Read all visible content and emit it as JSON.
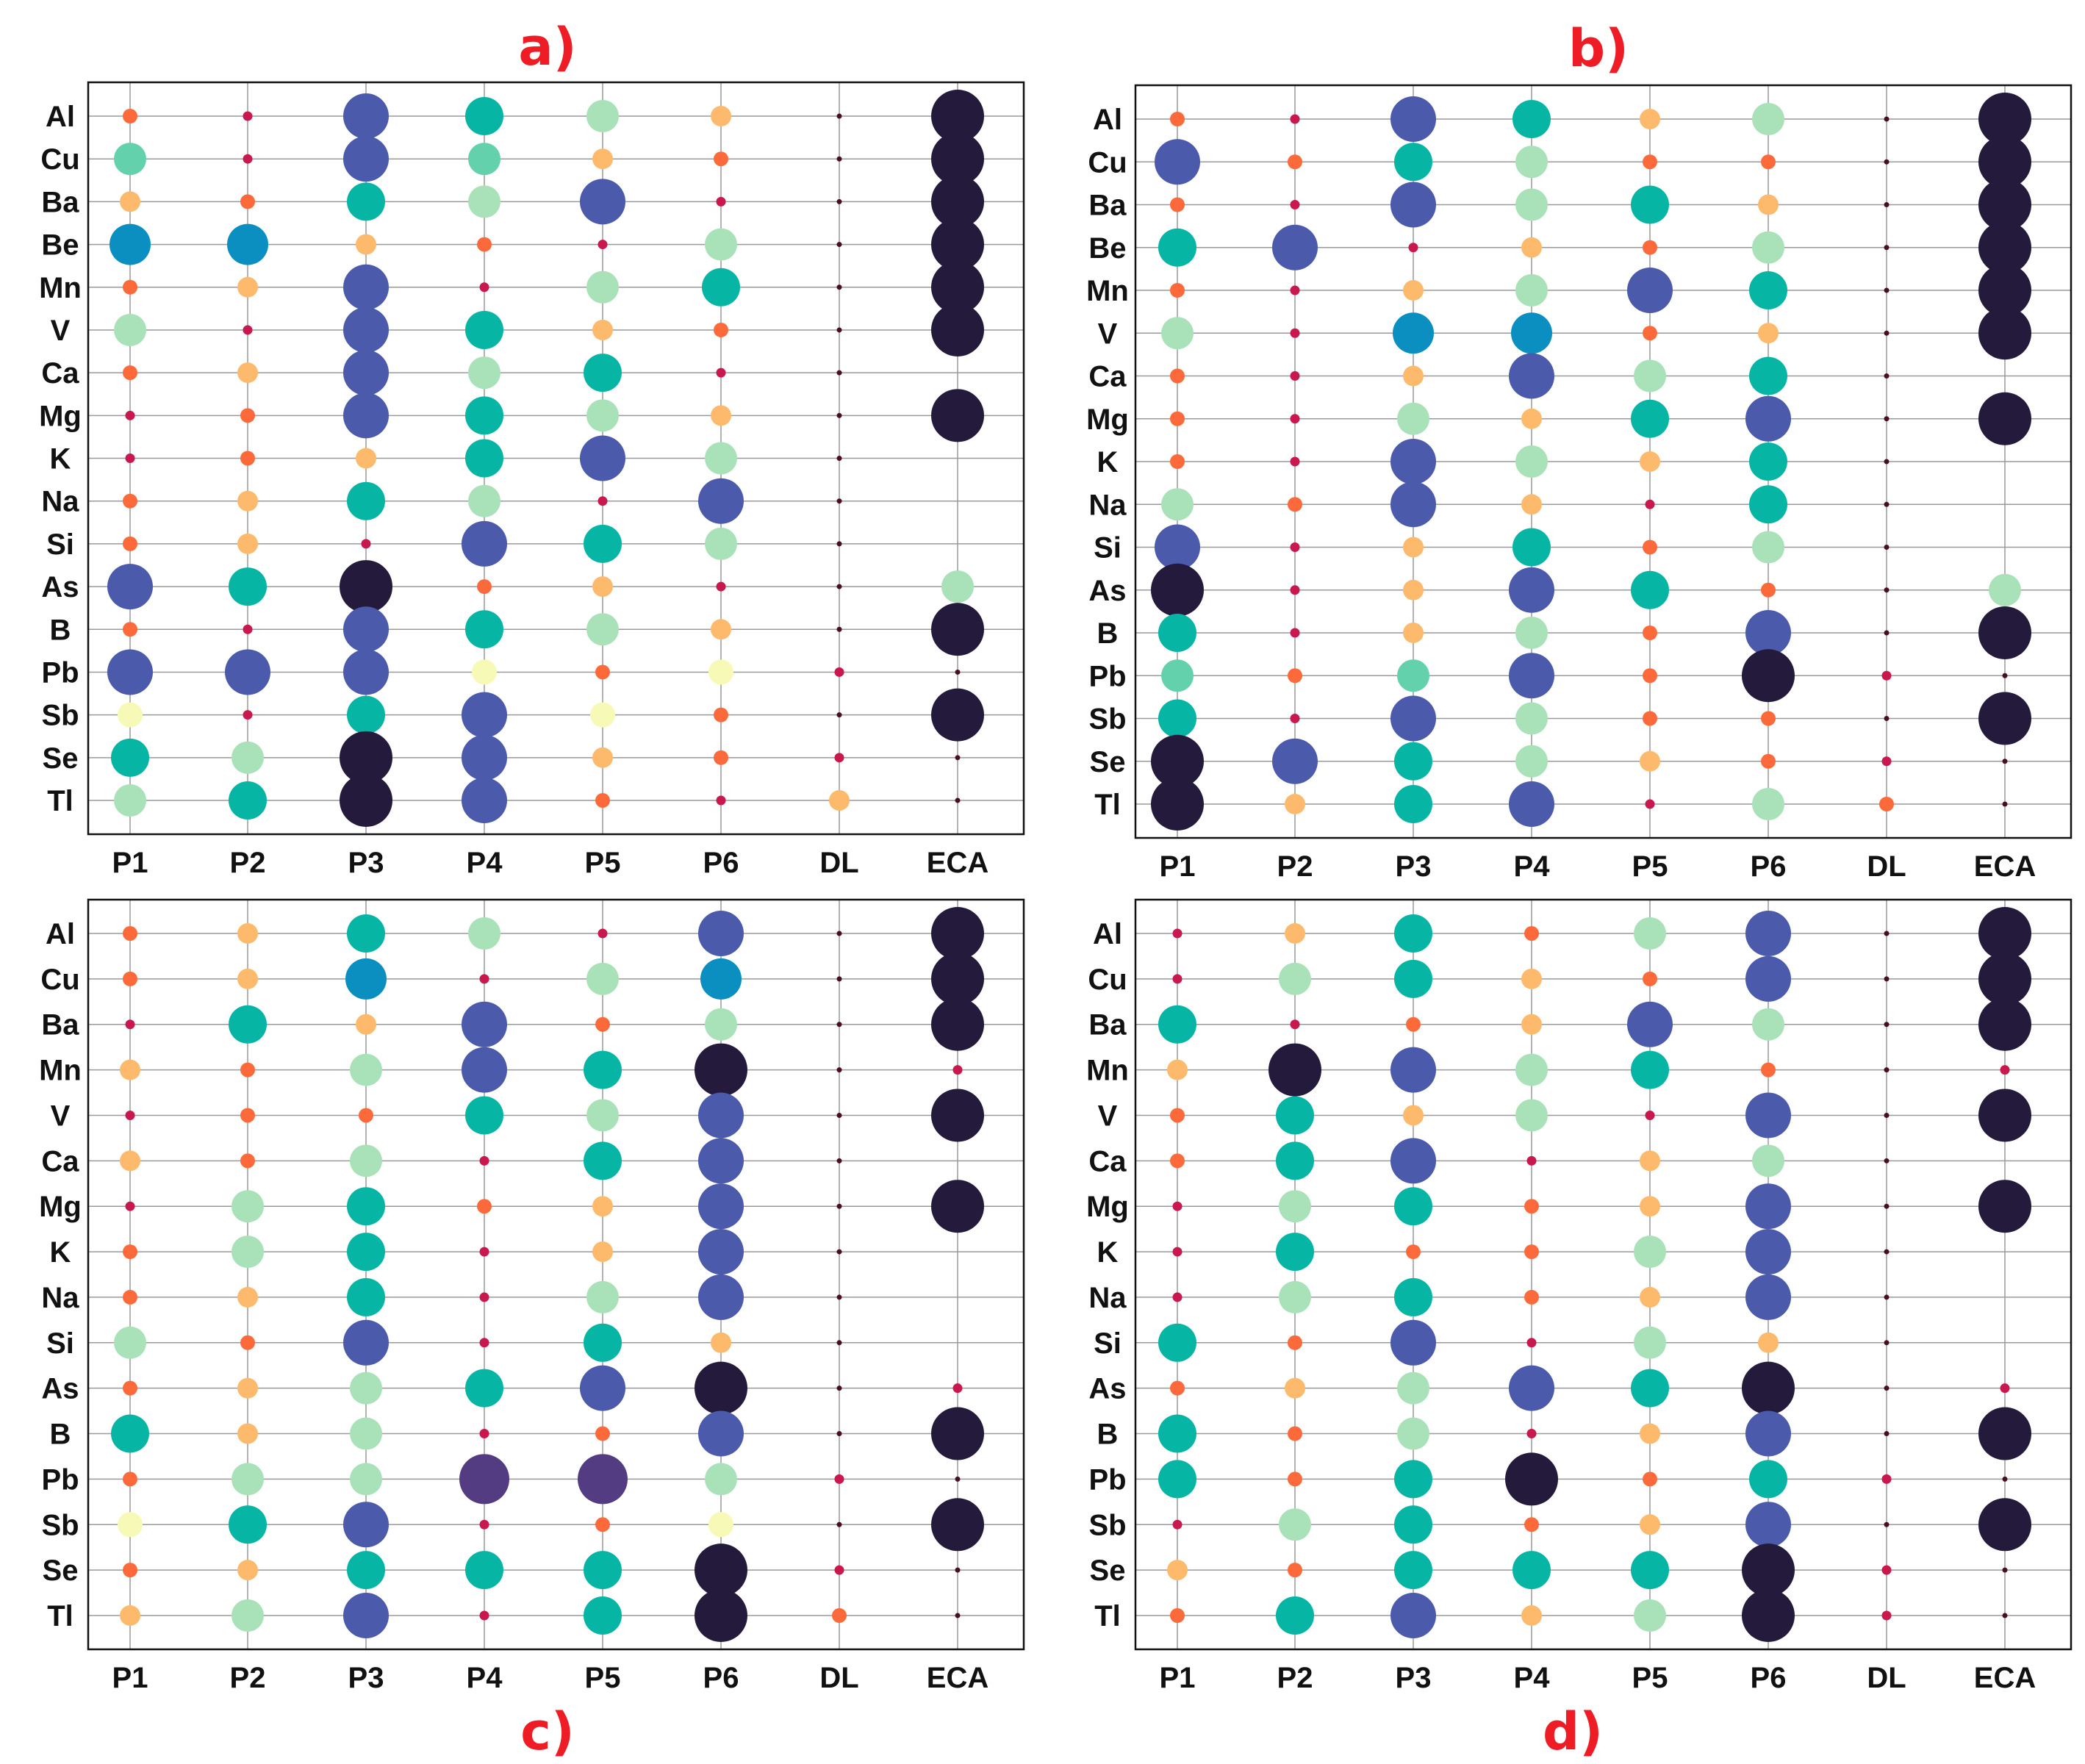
{
  "figure": {
    "type": "bubble-matrix",
    "title": "Element contribution bubble matrix (panels a–d)"
  },
  "colors": {
    "title": "#ee1c24",
    "frame": "#111111",
    "grid": "#9a9a9a",
    "levels": [
      "#c8184d",
      "#fc6a3c",
      "#fdba6c",
      "#f7f9b6",
      "#a9e1b8",
      "#62d1ac",
      "#07b5a5",
      "#0a8fc0",
      "#4b5aab",
      "#543c82",
      "#231a3c"
    ]
  },
  "chart_data": [
    {
      "title": "a)",
      "type": "bubble-matrix",
      "columns": [
        "P1",
        "P2",
        "P3",
        "P4",
        "P5",
        "P6",
        "DL",
        "ECA"
      ],
      "rows": [
        "Al",
        "Cu",
        "Ba",
        "Be",
        "Mn",
        "V",
        "Ca",
        "Mg",
        "K",
        "Na",
        "Si",
        "As",
        "B",
        "Pb",
        "Sb",
        "Se",
        "Tl"
      ],
      "size_levels": 11,
      "values": [
        [
          1,
          0,
          8,
          6,
          4,
          2,
          -1,
          10
        ],
        [
          5,
          0,
          8,
          5,
          2,
          1,
          -1,
          10
        ],
        [
          2,
          1,
          6,
          4,
          8,
          0,
          -1,
          10
        ],
        [
          7,
          7,
          2,
          1,
          0,
          4,
          -1,
          10
        ],
        [
          1,
          2,
          8,
          0,
          4,
          6,
          -1,
          10
        ],
        [
          4,
          0,
          8,
          6,
          2,
          1,
          -1,
          10
        ],
        [
          1,
          2,
          8,
          4,
          6,
          0,
          -1,
          -2
        ],
        [
          0,
          1,
          8,
          6,
          4,
          2,
          -1,
          10
        ],
        [
          0,
          1,
          2,
          6,
          8,
          4,
          -1,
          -2
        ],
        [
          1,
          2,
          6,
          4,
          0,
          8,
          -1,
          -2
        ],
        [
          1,
          2,
          0,
          8,
          6,
          4,
          -1,
          -2
        ],
        [
          8,
          6,
          10,
          1,
          2,
          0,
          -1,
          4
        ],
        [
          1,
          0,
          8,
          6,
          4,
          2,
          -1,
          10
        ],
        [
          8,
          8,
          8,
          3,
          1,
          3,
          0,
          -1
        ],
        [
          3,
          0,
          6,
          8,
          3,
          1,
          -1,
          10
        ],
        [
          6,
          4,
          10,
          8,
          2,
          1,
          0,
          -1
        ],
        [
          4,
          6,
          10,
          8,
          1,
          0,
          2,
          -1
        ]
      ]
    },
    {
      "title": "b)",
      "type": "bubble-matrix",
      "columns": [
        "P1",
        "P2",
        "P3",
        "P4",
        "P5",
        "P6",
        "DL",
        "ECA"
      ],
      "rows": [
        "Al",
        "Cu",
        "Ba",
        "Be",
        "Mn",
        "V",
        "Ca",
        "Mg",
        "K",
        "Na",
        "Si",
        "As",
        "B",
        "Pb",
        "Sb",
        "Se",
        "Tl"
      ],
      "size_levels": 11,
      "values": [
        [
          1,
          0,
          8,
          6,
          2,
          4,
          -1,
          10
        ],
        [
          8,
          1,
          6,
          4,
          1,
          1,
          -1,
          10
        ],
        [
          1,
          0,
          8,
          4,
          6,
          2,
          -1,
          10
        ],
        [
          6,
          8,
          0,
          2,
          1,
          4,
          -1,
          10
        ],
        [
          1,
          0,
          2,
          4,
          8,
          6,
          -1,
          10
        ],
        [
          4,
          0,
          7,
          7,
          1,
          2,
          -1,
          10
        ],
        [
          1,
          0,
          2,
          8,
          4,
          6,
          -1,
          -2
        ],
        [
          1,
          0,
          4,
          2,
          6,
          8,
          -1,
          10
        ],
        [
          1,
          0,
          8,
          4,
          2,
          6,
          -1,
          -2
        ],
        [
          4,
          1,
          8,
          2,
          0,
          6,
          -1,
          -2
        ],
        [
          8,
          0,
          2,
          6,
          1,
          4,
          -1,
          -2
        ],
        [
          10,
          0,
          2,
          8,
          6,
          1,
          -1,
          4
        ],
        [
          6,
          0,
          2,
          4,
          1,
          8,
          -1,
          10
        ],
        [
          5,
          1,
          5,
          8,
          1,
          10,
          0,
          -1
        ],
        [
          6,
          0,
          8,
          4,
          1,
          1,
          -1,
          10
        ],
        [
          10,
          8,
          6,
          4,
          2,
          1,
          0,
          -1
        ],
        [
          10,
          2,
          6,
          8,
          0,
          4,
          1,
          -1
        ]
      ]
    },
    {
      "title": "c)",
      "type": "bubble-matrix",
      "columns": [
        "P1",
        "P2",
        "P3",
        "P4",
        "P5",
        "P6",
        "DL",
        "ECA"
      ],
      "rows": [
        "Al",
        "Cu",
        "Ba",
        "Mn",
        "V",
        "Ca",
        "Mg",
        "K",
        "Na",
        "Si",
        "As",
        "B",
        "Pb",
        "Sb",
        "Se",
        "Tl"
      ],
      "size_levels": 11,
      "values": [
        [
          1,
          2,
          6,
          4,
          0,
          8,
          -1,
          10
        ],
        [
          1,
          2,
          7,
          0,
          4,
          7,
          -1,
          10
        ],
        [
          0,
          6,
          2,
          8,
          1,
          4,
          -1,
          10
        ],
        [
          2,
          1,
          4,
          8,
          6,
          10,
          -1,
          0
        ],
        [
          0,
          1,
          1,
          6,
          4,
          8,
          -1,
          10
        ],
        [
          2,
          1,
          4,
          0,
          6,
          8,
          -1,
          -2
        ],
        [
          0,
          4,
          6,
          1,
          2,
          8,
          -1,
          10
        ],
        [
          1,
          4,
          6,
          0,
          2,
          8,
          -1,
          -2
        ],
        [
          1,
          2,
          6,
          0,
          4,
          8,
          -1,
          -2
        ],
        [
          4,
          1,
          8,
          0,
          6,
          2,
          -1,
          -2
        ],
        [
          1,
          2,
          4,
          6,
          8,
          10,
          -1,
          0
        ],
        [
          6,
          2,
          4,
          0,
          1,
          8,
          -1,
          10
        ],
        [
          1,
          4,
          4,
          9,
          9,
          4,
          0,
          -1
        ],
        [
          3,
          6,
          8,
          0,
          1,
          3,
          -1,
          10
        ],
        [
          1,
          2,
          6,
          6,
          6,
          10,
          0,
          -1
        ],
        [
          2,
          4,
          8,
          0,
          6,
          10,
          1,
          -1
        ]
      ]
    },
    {
      "title": "d)",
      "type": "bubble-matrix",
      "columns": [
        "P1",
        "P2",
        "P3",
        "P4",
        "P5",
        "P6",
        "DL",
        "ECA"
      ],
      "rows": [
        "Al",
        "Cu",
        "Ba",
        "Mn",
        "V",
        "Ca",
        "Mg",
        "K",
        "Na",
        "Si",
        "As",
        "B",
        "Pb",
        "Sb",
        "Se",
        "Tl"
      ],
      "size_levels": 11,
      "values": [
        [
          0,
          2,
          6,
          1,
          4,
          8,
          -1,
          10
        ],
        [
          0,
          4,
          6,
          2,
          1,
          8,
          -1,
          10
        ],
        [
          6,
          0,
          1,
          2,
          8,
          4,
          -1,
          10
        ],
        [
          2,
          10,
          8,
          4,
          6,
          1,
          -1,
          0
        ],
        [
          1,
          6,
          2,
          4,
          0,
          8,
          -1,
          10
        ],
        [
          1,
          6,
          8,
          0,
          2,
          4,
          -1,
          -2
        ],
        [
          0,
          4,
          6,
          1,
          2,
          8,
          -1,
          10
        ],
        [
          0,
          6,
          1,
          1,
          4,
          8,
          -1,
          -2
        ],
        [
          0,
          4,
          6,
          1,
          2,
          8,
          -1,
          -2
        ],
        [
          6,
          1,
          8,
          0,
          4,
          2,
          -1,
          -2
        ],
        [
          1,
          2,
          4,
          8,
          6,
          10,
          -1,
          0
        ],
        [
          6,
          1,
          4,
          0,
          2,
          8,
          -1,
          10
        ],
        [
          6,
          1,
          6,
          10,
          1,
          6,
          0,
          -1
        ],
        [
          0,
          4,
          6,
          1,
          2,
          8,
          -1,
          10
        ],
        [
          2,
          1,
          6,
          6,
          6,
          10,
          0,
          -1
        ],
        [
          1,
          6,
          8,
          2,
          4,
          10,
          0,
          -1
        ]
      ]
    }
  ]
}
